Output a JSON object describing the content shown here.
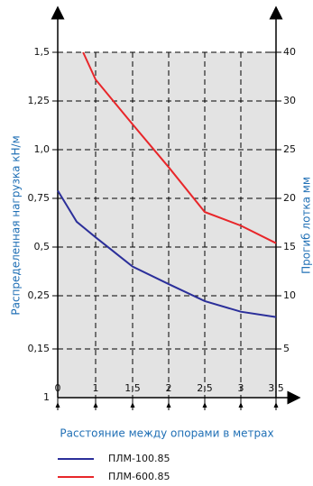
{
  "chart_data": {
    "type": "line",
    "ylabel": "Распределенная нагрузка кН/м",
    "y2label": "Прогиб лотка мм",
    "xlabel": "Расстояние между опорами в метрах",
    "xlim": [
      0,
      3.5
    ],
    "xticks": [
      0,
      1,
      {
        "value": 1.5,
        "label": "1,5"
      },
      2,
      {
        "value": 2.5,
        "label": "2,5"
      },
      3,
      {
        "value": 3.5,
        "label": "3,5"
      }
    ],
    "ylim": [
      0.15,
      1.5
    ],
    "yticks": [
      {
        "value": 1.5,
        "label": "1,5"
      },
      {
        "value": 1.25,
        "label": "1,25"
      },
      {
        "value": 1.0,
        "label": "1,0"
      },
      {
        "value": 0.75,
        "label": "0,75"
      },
      {
        "value": 0.5,
        "label": "0,5"
      },
      {
        "value": 0.25,
        "label": "0,25"
      },
      {
        "value": 0.15,
        "label": "0,15"
      }
    ],
    "y2lim": [
      1,
      40
    ],
    "y2ticks": [
      40,
      30,
      25,
      20,
      15,
      10,
      5,
      1
    ],
    "grid": true,
    "series": [
      {
        "name": "ПЛМ-100.85",
        "color": "#2b2f9a",
        "x": [
          0,
          0.25,
          0.5,
          1,
          1.5,
          2,
          2.5,
          3,
          3.5
        ],
        "values": [
          0.79,
          0.71,
          0.63,
          0.55,
          0.4,
          0.31,
          0.24,
          0.22,
          0.21
        ]
      },
      {
        "name": "ПЛМ-600.85",
        "color": "#e8262a",
        "x": [
          0.67,
          1,
          1.5,
          2,
          2.5,
          3,
          3.5
        ],
        "values": [
          1.5,
          1.36,
          1.13,
          0.91,
          0.68,
          0.61,
          0.52
        ]
      }
    ]
  }
}
